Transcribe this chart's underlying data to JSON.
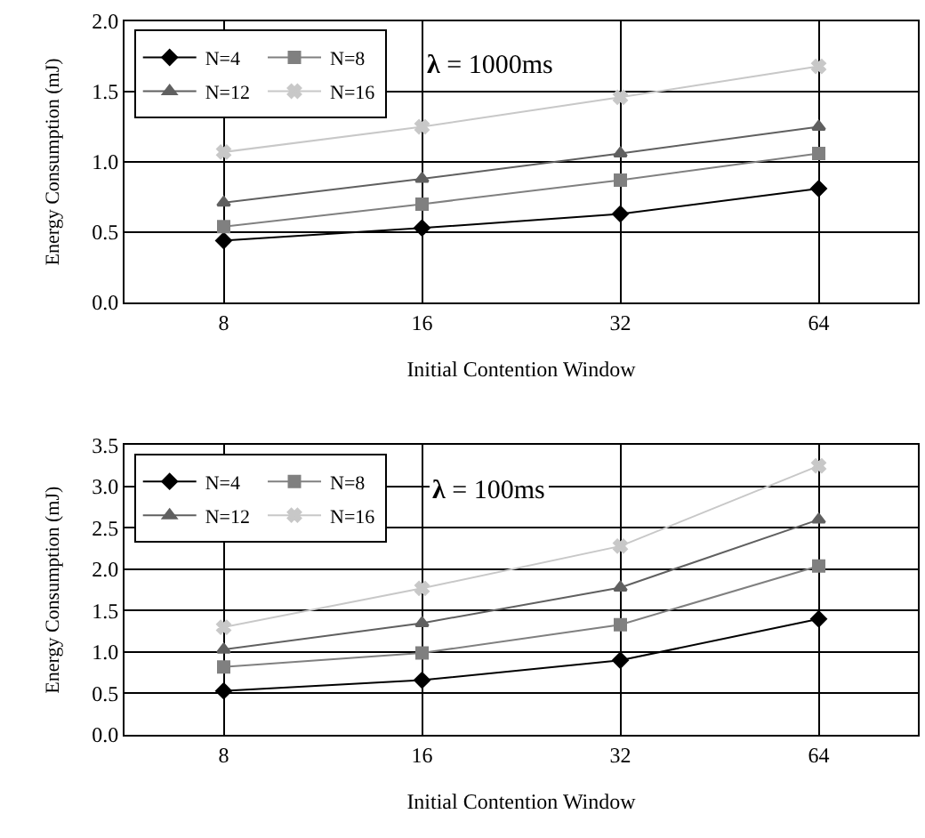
{
  "chart_data": [
    {
      "type": "line",
      "categories": [
        "8",
        "16",
        "32",
        "64"
      ],
      "xlabel": "Initial Contention Window",
      "ylabel": "Energy Consumption (mJ)",
      "ylim": [
        0,
        2
      ],
      "yticks": [
        {
          "value": 0,
          "label": "0.0"
        },
        {
          "value": 0.5,
          "label": "0.5"
        },
        {
          "value": 1,
          "label": "1.0"
        },
        {
          "value": 1.5,
          "label": "1.5"
        },
        {
          "value": 2,
          "label": "2.0"
        }
      ],
      "grid": true,
      "legend": "top left",
      "annotations": [
        "λ = 1000ms"
      ],
      "series": [
        {
          "name": "N=4",
          "color": "#000000",
          "marker": "diamond",
          "values": [
            0.44,
            0.53,
            0.63,
            0.81
          ]
        },
        {
          "name": "N=8",
          "color": "#808080",
          "marker": "square",
          "values": [
            0.54,
            0.7,
            0.87,
            1.06
          ]
        },
        {
          "name": "N=12",
          "color": "#606060",
          "marker": "triangle",
          "values": [
            0.71,
            0.88,
            1.06,
            1.25
          ]
        },
        {
          "name": "N=16",
          "color": "#c8c8c8",
          "marker": "cross",
          "values": [
            1.07,
            1.25,
            1.46,
            1.68
          ]
        }
      ]
    },
    {
      "type": "line",
      "categories": [
        "8",
        "16",
        "32",
        "64"
      ],
      "xlabel": "Initial Contention Window",
      "ylabel": "Energy Consumption (mJ)",
      "ylim": [
        0,
        3.5
      ],
      "yticks": [
        {
          "value": 0,
          "label": "0.0"
        },
        {
          "value": 0.5,
          "label": "0.5"
        },
        {
          "value": 1,
          "label": "1.0"
        },
        {
          "value": 1.5,
          "label": "1.5"
        },
        {
          "value": 2,
          "label": "2.0"
        },
        {
          "value": 2.5,
          "label": "2.5"
        },
        {
          "value": 3,
          "label": "3.0"
        },
        {
          "value": 3.5,
          "label": "3.5"
        }
      ],
      "grid": true,
      "legend": "top left",
      "annotations": [
        "λ = 100ms"
      ],
      "series": [
        {
          "name": "N=4",
          "color": "#000000",
          "marker": "diamond",
          "values": [
            0.53,
            0.66,
            0.9,
            1.4
          ]
        },
        {
          "name": "N=8",
          "color": "#808080",
          "marker": "square",
          "values": [
            0.82,
            0.99,
            1.33,
            2.04
          ]
        },
        {
          "name": "N=12",
          "color": "#606060",
          "marker": "triangle",
          "values": [
            1.03,
            1.35,
            1.78,
            2.6
          ]
        },
        {
          "name": "N=16",
          "color": "#c8c8c8",
          "marker": "cross",
          "values": [
            1.3,
            1.77,
            2.28,
            3.25
          ]
        }
      ]
    }
  ]
}
